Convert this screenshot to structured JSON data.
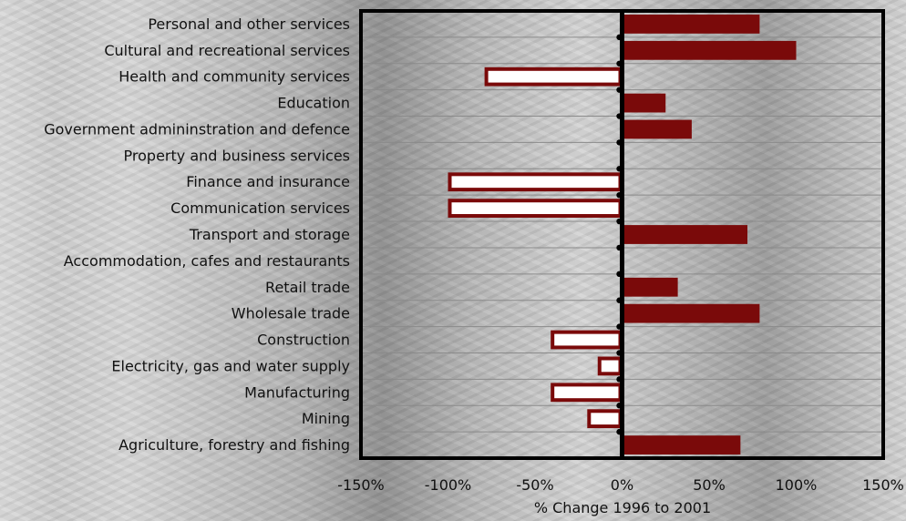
{
  "chart_data": {
    "type": "bar",
    "orientation": "horizontal",
    "title": "",
    "xlabel": "% Change 1996 to 2001",
    "ylabel": "",
    "xlim": [
      -150,
      150
    ],
    "xticks": [
      -150,
      -100,
      -50,
      0,
      50,
      100,
      150
    ],
    "xtick_labels": [
      "-150%",
      "-100%",
      "-50%",
      "0%",
      "50%",
      "100%",
      "150%"
    ],
    "grid": "horizontal lines",
    "colors": {
      "positive": "#7a0a0a",
      "negative_fill": "#ffffff",
      "negative_border": "#7a0a0a",
      "frame": "#000000"
    },
    "categories": [
      "Personal and other services",
      "Cultural and recreational services",
      "Health and community services",
      "Education",
      "Government admininstration and defence",
      "Property and business services",
      "Finance and insurance",
      "Communication services",
      "Transport and storage",
      "Accommodation, cafes and restaurants",
      "Retail trade",
      "Wholesale trade",
      "Construction",
      "Electricity, gas and water supply",
      "Manufacturing",
      "Mining",
      "Agriculture, forestry and fishing"
    ],
    "values": [
      79,
      100,
      -79,
      25,
      40,
      0,
      -100,
      -100,
      72,
      0,
      32,
      79,
      -41,
      -14,
      -41,
      -20,
      68
    ]
  }
}
